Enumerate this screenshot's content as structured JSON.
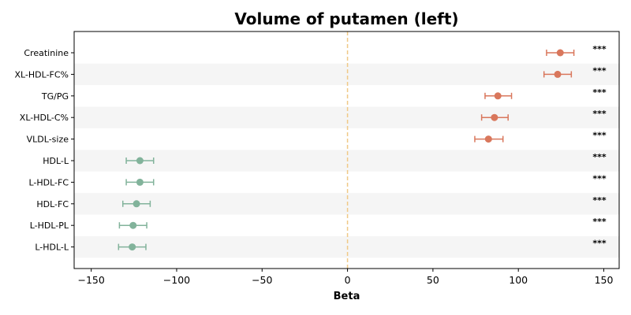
{
  "chart_data": {
    "type": "scatter",
    "title": "Volume of putamen (left)",
    "xlabel": "Beta",
    "ylabel": "",
    "xlim": [
      -160,
      159
    ],
    "xticks": [
      -150,
      -100,
      -50,
      0,
      50,
      100,
      150
    ],
    "xtick_labels": [
      "−150",
      "−100",
      "−50",
      "0",
      "50",
      "100",
      "150"
    ],
    "reference_line": 0,
    "reference_line_color": "#f0c987",
    "positive_color": "#d9775c",
    "negative_color": "#82b39b",
    "band_color": "#f5f5f5",
    "categories": [
      "Creatinine",
      "XL-HDL-FC%",
      "TG/PG",
      "XL-HDL-C%",
      "VLDL-size",
      "HDL-L",
      "L-HDL-FC",
      "HDL-FC",
      "L-HDL-PL",
      "L-HDL-L"
    ],
    "values": [
      124.5,
      123,
      88,
      86,
      82.5,
      -121.5,
      -121.5,
      -123.5,
      -125.5,
      -126
    ],
    "ci_low": [
      116.5,
      115,
      80.5,
      78.5,
      74.5,
      -129.5,
      -129.5,
      -131.5,
      -133.5,
      -134
    ],
    "ci_high": [
      132.5,
      131,
      96,
      94,
      91,
      -113.5,
      -113.5,
      -115.5,
      -117.5,
      -118
    ],
    "significance": [
      "***",
      "***",
      "***",
      "***",
      "***",
      "***",
      "***",
      "***",
      "***",
      "***"
    ]
  }
}
